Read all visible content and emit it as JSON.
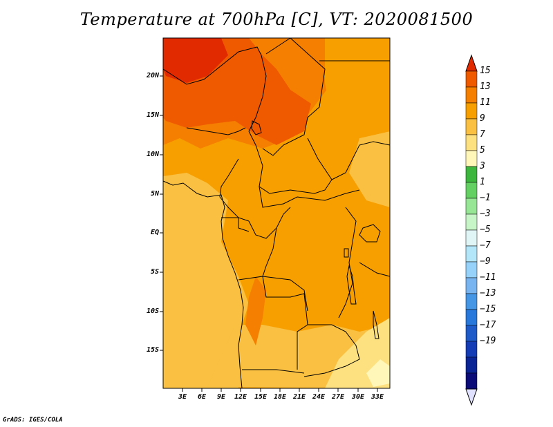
{
  "title": "Temperature at 700hPa [C], VT: 2020081500",
  "credit": "GrADS: IGES/COLA",
  "lat_labels": [
    "20N",
    "15N",
    "10N",
    "5N",
    "EQ",
    "5S",
    "10S",
    "15S"
  ],
  "lon_labels": [
    "3E",
    "6E",
    "9E",
    "12E",
    "15E",
    "18E",
    "21E",
    "24E",
    "27E",
    "30E",
    "33E"
  ],
  "colorbar": {
    "labels": [
      "15",
      "13",
      "11",
      "9",
      "7",
      "5",
      "3",
      "1",
      "−1",
      "−3",
      "−5",
      "−7",
      "−9",
      "−11",
      "−13",
      "−15",
      "−17",
      "−19"
    ],
    "colors": [
      "#e22a00",
      "#ef5a00",
      "#f57f00",
      "#f79f00",
      "#f9c041",
      "#fde181",
      "#fff7ba",
      "#3cb63c",
      "#64d064",
      "#96e696",
      "#c8f5c8",
      "#e0f5f5",
      "#b4e6fa",
      "#96d2fa",
      "#78b4f0",
      "#4696e6",
      "#2878dc",
      "#1e5ac8",
      "#143cb4",
      "#0a2496",
      "#0c0c78",
      "#e0e0ff"
    ]
  },
  "map": {
    "fill_colors": {
      "warm": "#e22a00",
      "hot": "#ef5a00",
      "orange": "#f57f00",
      "amber": "#f79f00",
      "light": "#f9c041",
      "pale": "#fde181",
      "cream": "#fff7ba"
    }
  }
}
